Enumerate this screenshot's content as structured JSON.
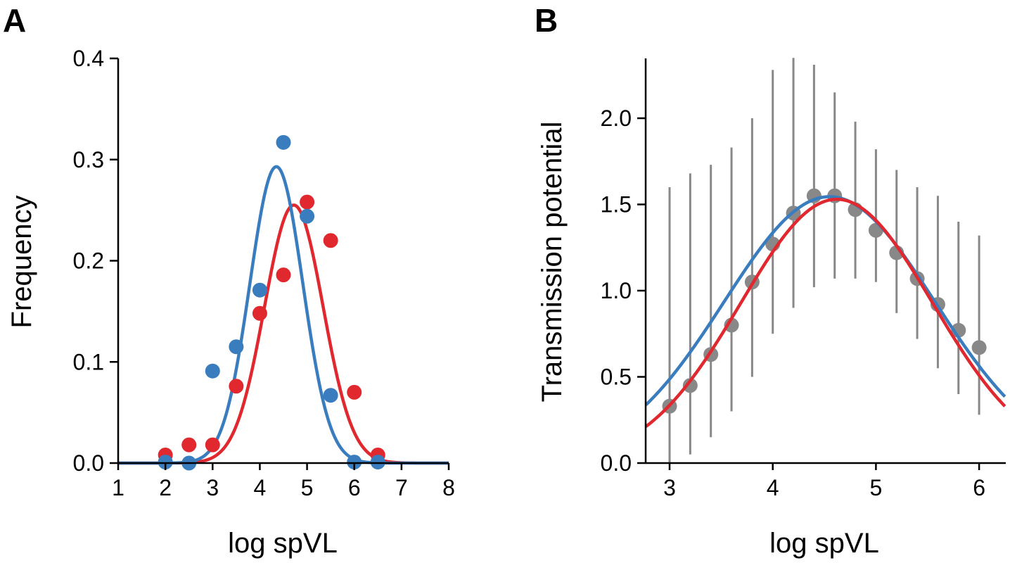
{
  "figure": {
    "colors": {
      "blue": "#3a7dbf",
      "red": "#e0282e",
      "gray": "#888888"
    }
  },
  "chart_data": [
    {
      "panel": "A",
      "type": "scatter",
      "xlabel": "log spVL",
      "ylabel": "Frequency",
      "xlim": [
        1,
        8
      ],
      "ylim": [
        0,
        0.4
      ],
      "xticks": [
        1,
        2,
        3,
        4,
        5,
        6,
        7,
        8
      ],
      "yticks": [
        "0.0",
        "0.1",
        "0.2",
        "0.3",
        "0.4"
      ],
      "grid": false,
      "series": [
        {
          "color": "#e0282e",
          "points": [
            {
              "x": 2.0,
              "y": 0.008
            },
            {
              "x": 2.5,
              "y": 0.018
            },
            {
              "x": 3.0,
              "y": 0.018
            },
            {
              "x": 3.5,
              "y": 0.076
            },
            {
              "x": 4.0,
              "y": 0.148
            },
            {
              "x": 4.5,
              "y": 0.186
            },
            {
              "x": 5.0,
              "y": 0.258
            },
            {
              "x": 5.5,
              "y": 0.22
            },
            {
              "x": 6.0,
              "y": 0.07
            },
            {
              "x": 6.5,
              "y": 0.008
            }
          ],
          "fit": {
            "mean": 4.72,
            "sd": 0.62,
            "peak": 0.255
          }
        },
        {
          "color": "#3a7dbf",
          "points": [
            {
              "x": 2.0,
              "y": 0.001
            },
            {
              "x": 2.5,
              "y": 0.0
            },
            {
              "x": 3.0,
              "y": 0.091
            },
            {
              "x": 3.5,
              "y": 0.115
            },
            {
              "x": 4.0,
              "y": 0.171
            },
            {
              "x": 4.5,
              "y": 0.317
            },
            {
              "x": 5.0,
              "y": 0.244
            },
            {
              "x": 5.5,
              "y": 0.067
            },
            {
              "x": 6.0,
              "y": 0.001
            },
            {
              "x": 6.5,
              "y": 0.001
            }
          ],
          "fit": {
            "mean": 4.35,
            "sd": 0.56,
            "peak": 0.293
          }
        }
      ]
    },
    {
      "panel": "B",
      "type": "scatter",
      "xlabel": "log spVL",
      "ylabel": "Transmission potential",
      "xlim": [
        2.75,
        6.25
      ],
      "ylim": [
        0,
        2.0
      ],
      "xticks": [
        3,
        4,
        5,
        6
      ],
      "yticks": [
        "0.0",
        "0.5",
        "1.0",
        "1.5",
        "2.0"
      ],
      "grid": false,
      "points_color": "#888888",
      "points": [
        {
          "x": 3.0,
          "y": 0.33,
          "lo": 0.0,
          "hi": 1.6
        },
        {
          "x": 3.2,
          "y": 0.45,
          "lo": 0.05,
          "hi": 1.68
        },
        {
          "x": 3.4,
          "y": 0.63,
          "lo": 0.15,
          "hi": 1.73
        },
        {
          "x": 3.6,
          "y": 0.8,
          "lo": 0.3,
          "hi": 1.83
        },
        {
          "x": 3.8,
          "y": 1.05,
          "lo": 0.5,
          "hi": 2.0
        },
        {
          "x": 4.0,
          "y": 1.27,
          "lo": 0.75,
          "hi": 2.28
        },
        {
          "x": 4.2,
          "y": 1.45,
          "lo": 0.9,
          "hi": 2.35
        },
        {
          "x": 4.4,
          "y": 1.55,
          "lo": 1.02,
          "hi": 2.31
        },
        {
          "x": 4.6,
          "y": 1.55,
          "lo": 1.07,
          "hi": 2.15
        },
        {
          "x": 4.8,
          "y": 1.47,
          "lo": 1.07,
          "hi": 1.98
        },
        {
          "x": 5.0,
          "y": 1.35,
          "lo": 1.05,
          "hi": 1.82
        },
        {
          "x": 5.2,
          "y": 1.22,
          "lo": 0.87,
          "hi": 1.7
        },
        {
          "x": 5.4,
          "y": 1.07,
          "lo": 0.72,
          "hi": 1.6
        },
        {
          "x": 5.6,
          "y": 0.92,
          "lo": 0.55,
          "hi": 1.55
        },
        {
          "x": 5.8,
          "y": 0.77,
          "lo": 0.4,
          "hi": 1.4
        },
        {
          "x": 6.0,
          "y": 0.67,
          "lo": 0.28,
          "hi": 1.32
        }
      ],
      "series": [
        {
          "color": "#3a7dbf",
          "fit": {
            "mean": 4.55,
            "sd": 1.02,
            "peak": 1.545
          }
        },
        {
          "color": "#e0282e",
          "fit": {
            "mean": 4.62,
            "sd": 0.93,
            "peak": 1.53
          }
        }
      ]
    }
  ]
}
